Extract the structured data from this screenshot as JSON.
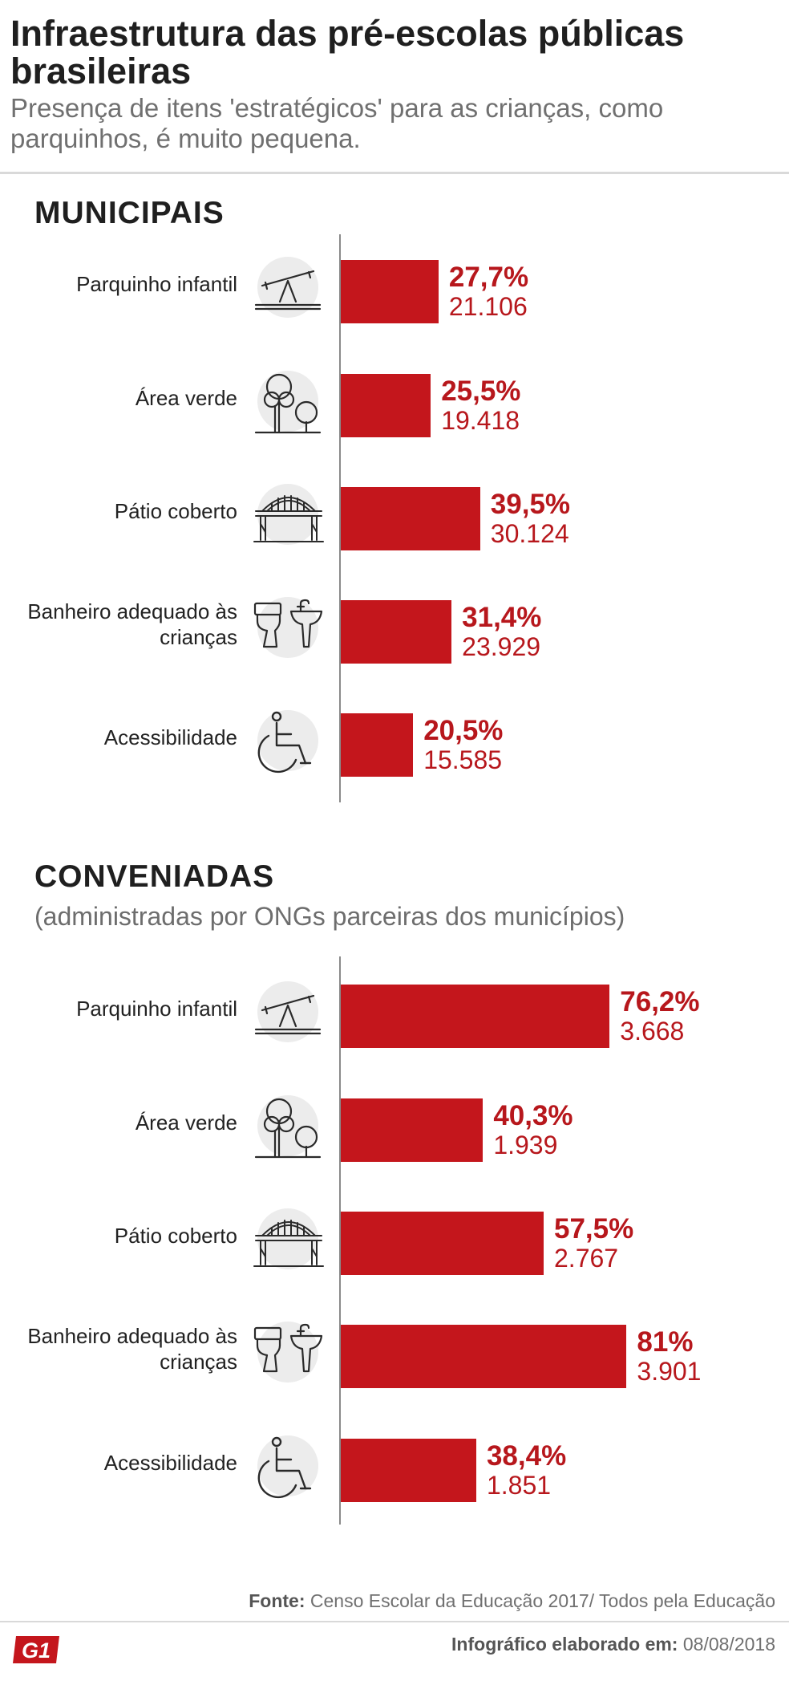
{
  "title": "Infraestrutura das pré-escolas públicas brasileiras",
  "subtitle": "Presença de itens 'estratégicos' para as crianças, como parquinhos, é muito pequena.",
  "colors": {
    "bar": "#c4161c",
    "text_accent": "#b7171c"
  },
  "chart_data": [
    {
      "type": "bar",
      "orientation": "horizontal",
      "section": "MUNICIPAIS",
      "note": "",
      "categories": [
        "Parquinho infantil",
        "Área verde",
        "Pátio coberto",
        "Banheiro adequado às crianças",
        "Acessibilidade"
      ],
      "values": [
        27.7,
        25.5,
        39.5,
        31.4,
        20.5
      ],
      "value_labels": [
        "27,7%",
        "25,5%",
        "39,5%",
        "31,4%",
        "20,5%"
      ],
      "counts": [
        "21.106",
        "19.418",
        "30.124",
        "23.929",
        "15.585"
      ],
      "icons": [
        "seesaw-icon",
        "trees-icon",
        "covered-patio-icon",
        "toilet-sink-icon",
        "wheelchair-icon"
      ],
      "xlim": [
        0,
        100
      ]
    },
    {
      "type": "bar",
      "orientation": "horizontal",
      "section": "CONVENIADAS",
      "note": "(administradas por ONGs parceiras dos municípios)",
      "categories": [
        "Parquinho infantil",
        "Área verde",
        "Pátio coberto",
        "Banheiro adequado às crianças",
        "Acessibilidade"
      ],
      "values": [
        76.2,
        40.3,
        57.5,
        81,
        38.4
      ],
      "value_labels": [
        "76,2%",
        "40,3%",
        "57,5%",
        "81%",
        "38,4%"
      ],
      "counts": [
        "3.668",
        "1.939",
        "2.767",
        "3.901",
        "1.851"
      ],
      "icons": [
        "seesaw-icon",
        "trees-icon",
        "covered-patio-icon",
        "toilet-sink-icon",
        "wheelchair-icon"
      ],
      "xlim": [
        0,
        100
      ]
    }
  ],
  "footer": {
    "source_label": "Fonte:",
    "source_text": "Censo Escolar da Educação 2017/ Todos pela Educação",
    "date_label": "Infográfico elaborado em:",
    "date_text": "08/08/2018",
    "logo": "G1"
  }
}
